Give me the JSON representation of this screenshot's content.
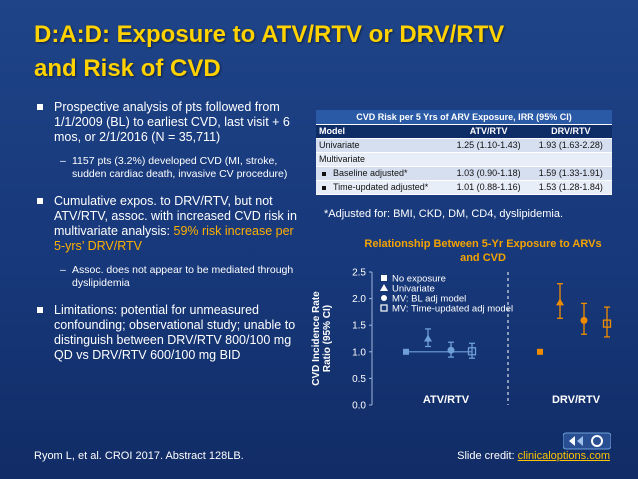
{
  "slide": {
    "title_line1": "D:A:D: Exposure to ATV/RTV or DRV/RTV",
    "title_line2": "and Risk of CVD",
    "bullet1": "Prospective analysis of pts followed from 1/1/2009 (BL) to earliest CVD, last visit + 6 mos, or 2/1/2016 (N = 35,711)",
    "bullet1_sub": "1157 pts (3.2%) developed CVD (MI, stroke, sudden cardiac death, invasive CV procedure)",
    "bullet2_a": "Cumulative expos. to DRV/RTV, but not ATV/RTV, assoc. with increased CVD risk in multivariate analysis: ",
    "bullet2_b": "59% risk increase per 5-yrs’ DRV/RTV",
    "bullet2_sub": "Assoc. does not appear to be mediated through dyslipidemia",
    "bullet3": "Limitations: potential for unmeasured confounding; observational study; unable to distinguish between DRV/RTV 800/100 mg QD vs DRV/RTV 600/100 mg BID",
    "footnote": "*Adjusted for: BMI, CKD, DM, CD4, dyslipidemia.",
    "source": "Ryom L, et al. CROI 2017. Abstract 128LB.",
    "credit_label": "Slide credit: ",
    "credit_link": "clinicaloptions.com"
  },
  "table": {
    "caption": "CVD Risk per 5 Yrs of ARV Exposure, IRR (95% CI)",
    "headers": [
      "Model",
      "ATV/RTV",
      "DRV/RTV"
    ],
    "rows": [
      {
        "label": "Univariate",
        "atv": "1.25 (1.10-1.43)",
        "drv": "1.93 (1.63-2.28)"
      },
      {
        "label": "Multivariate",
        "atv": "",
        "drv": ""
      },
      {
        "label": "Baseline adjusted*",
        "atv": "1.03 (0.90-1.18)",
        "drv": "1.59 (1.33-1.91)"
      },
      {
        "label": "Time-updated adjusted*",
        "atv": "1.01 (0.88-1.16)",
        "drv": "1.53 (1.28-1.84)"
      }
    ]
  },
  "chart_data": {
    "type": "scatter",
    "title": "Relationship Between 5-Yr Exposure to ARVs and CVD",
    "xlabel": "",
    "ylabel": "CVD Incidence Rate Ratio (95% CI)",
    "ylim": [
      0,
      2.5
    ],
    "yticks": [
      "0.0",
      "0.5",
      "1.0",
      "1.5",
      "2.0",
      "2.5"
    ],
    "categories": [
      "ATV/RTV",
      "DRV/RTV"
    ],
    "reference_line": 1.0,
    "legend_position": "top-left",
    "series": [
      {
        "name": "No exposure",
        "marker": "square",
        "color": "#f08c00",
        "values": [
          1.0,
          1.0
        ],
        "lower": [
          null,
          null
        ],
        "upper": [
          null,
          null
        ]
      },
      {
        "name": "Univariate",
        "marker": "triangle",
        "color": "#f08c00",
        "values": [
          1.25,
          1.93
        ],
        "lower": [
          1.1,
          1.63
        ],
        "upper": [
          1.43,
          2.28
        ]
      },
      {
        "name": "MV: BL adj model",
        "marker": "circle",
        "color": "#f08c00",
        "values": [
          1.03,
          1.59
        ],
        "lower": [
          0.9,
          1.33
        ],
        "upper": [
          1.18,
          1.91
        ]
      },
      {
        "name": "MV: Time-updated adj model",
        "marker": "open-square",
        "color": "#f08c00",
        "values": [
          1.01,
          1.53
        ],
        "lower": [
          0.88,
          1.28
        ],
        "upper": [
          1.16,
          1.84
        ]
      }
    ],
    "atv_color": "#6e9fd6",
    "drv_color": "#f08c00"
  }
}
